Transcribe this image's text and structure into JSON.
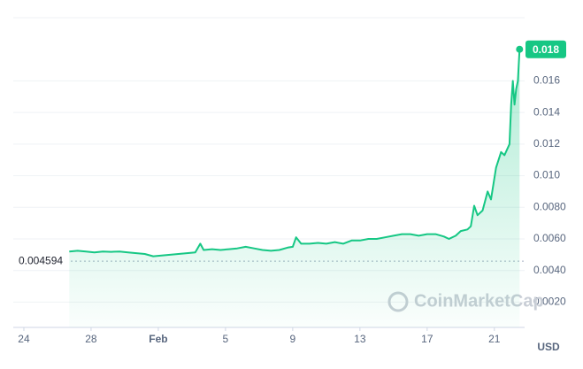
{
  "chart_data": {
    "type": "line",
    "x": [
      2.7,
      3.2,
      3.7,
      4.2,
      4.7,
      5.2,
      5.7,
      6.2,
      6.7,
      7.2,
      7.7,
      8.2,
      8.7,
      9.2,
      9.7,
      10.2,
      10.5,
      10.7,
      11.2,
      11.7,
      12.2,
      12.7,
      13.2,
      13.7,
      14.2,
      14.7,
      15.2,
      15.7,
      16.0,
      16.2,
      16.5,
      17.0,
      17.5,
      18.0,
      18.5,
      19.0,
      19.5,
      20.0,
      20.5,
      21.0,
      21.5,
      22.0,
      22.5,
      23.0,
      23.5,
      24.0,
      24.5,
      25.0,
      25.3,
      25.7,
      26.0,
      26.4,
      26.6,
      26.8,
      27.0,
      27.3,
      27.6,
      27.8,
      28.1,
      28.4,
      28.6,
      28.9,
      29.0,
      29.1,
      29.2,
      29.3,
      29.4,
      29.5
    ],
    "series": [
      {
        "color": "#16c784",
        "values": [
          0.0052,
          0.00525,
          0.0052,
          0.00515,
          0.0052,
          0.00518,
          0.0052,
          0.00515,
          0.0051,
          0.00505,
          0.0049,
          0.00495,
          0.005,
          0.00505,
          0.0051,
          0.00515,
          0.0057,
          0.0053,
          0.00535,
          0.0053,
          0.00535,
          0.0054,
          0.0055,
          0.0054,
          0.0053,
          0.00525,
          0.0053,
          0.00545,
          0.0055,
          0.0061,
          0.0057,
          0.0057,
          0.00575,
          0.0057,
          0.0058,
          0.0057,
          0.0059,
          0.0059,
          0.006,
          0.006,
          0.0061,
          0.0062,
          0.0063,
          0.0063,
          0.0062,
          0.0063,
          0.0063,
          0.00615,
          0.006,
          0.0062,
          0.0065,
          0.0066,
          0.0068,
          0.0081,
          0.0075,
          0.0078,
          0.009,
          0.0085,
          0.0105,
          0.0115,
          0.0113,
          0.012,
          0.0145,
          0.016,
          0.0145,
          0.0155,
          0.016,
          0.018
        ]
      }
    ],
    "xlim": [
      -0.63,
      29.8
    ],
    "xticks": [
      {
        "value": 0,
        "label": "24"
      },
      {
        "value": 4,
        "label": "28"
      },
      {
        "value": 8,
        "label": "Feb"
      },
      {
        "value": 12,
        "label": "5"
      },
      {
        "value": 16,
        "label": "9"
      },
      {
        "value": 20,
        "label": "13"
      },
      {
        "value": 24,
        "label": "17"
      },
      {
        "value": 28,
        "label": "21"
      }
    ],
    "ylim": [
      0.0004,
      0.02
    ],
    "yticks": [
      {
        "value": 0.002,
        "label": "0.0020"
      },
      {
        "value": 0.004,
        "label": "0.0040"
      },
      {
        "value": 0.006,
        "label": "0.0060"
      },
      {
        "value": 0.008,
        "label": "0.0080"
      },
      {
        "value": 0.01,
        "label": "0.010"
      },
      0.012,
      0.014,
      0.016
    ],
    "grid": true,
    "reference_line": 0.004594,
    "watermark": "CoinMarketCap",
    "unit": "USD"
  }
}
